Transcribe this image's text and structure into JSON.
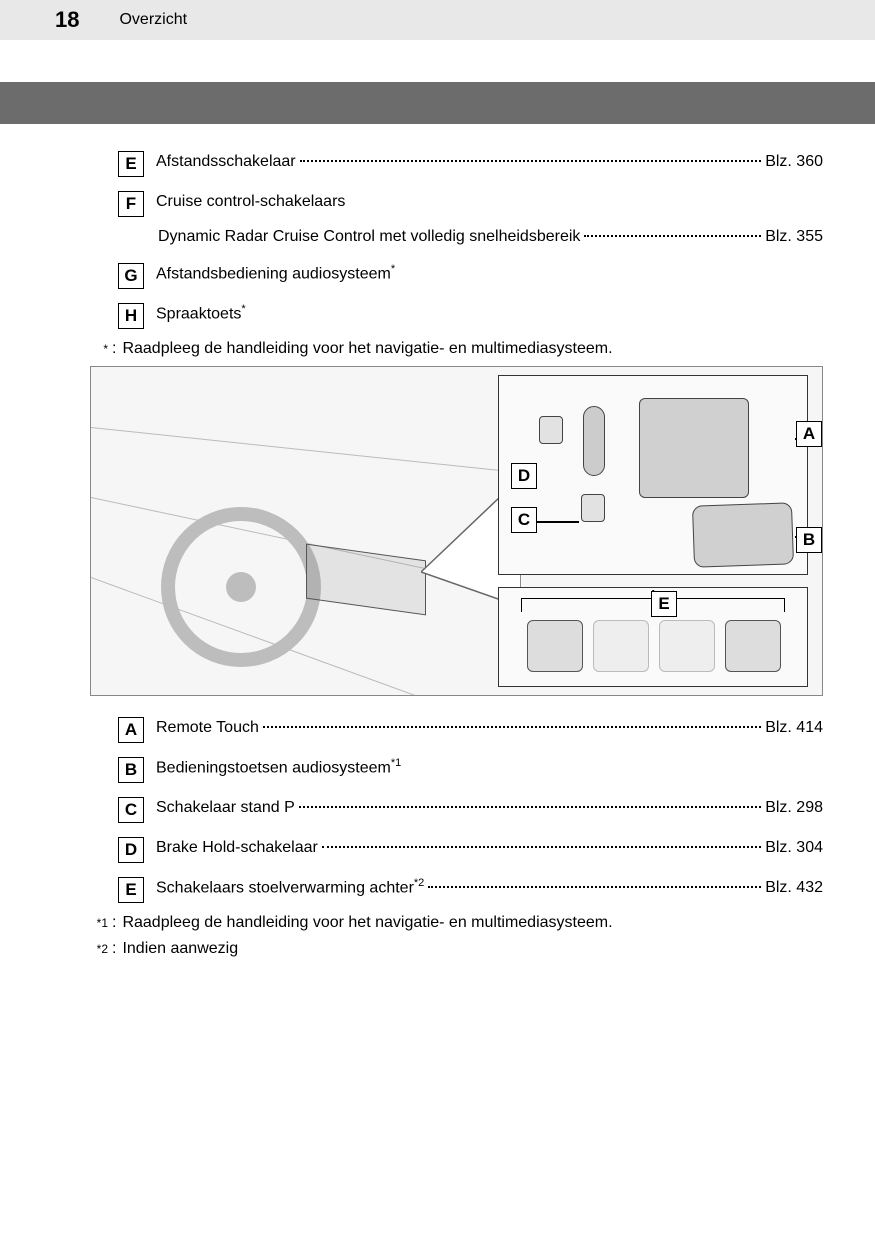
{
  "header": {
    "page_number": "18",
    "section_title": "Overzicht"
  },
  "upper_items": [
    {
      "letter": "E",
      "label": "Afstandsschakelaar",
      "page_ref": "Blz. 360",
      "has_dots": true
    },
    {
      "letter": "F",
      "label": "Cruise control-schakelaars",
      "page_ref": "",
      "has_dots": false,
      "sub": {
        "label": "Dynamic Radar Cruise Control met volledig snelheidsbereik",
        "page_ref": "Blz. 355"
      }
    },
    {
      "letter": "G",
      "label": "Afstandsbediening audiosysteem",
      "sup": "*",
      "page_ref": "",
      "has_dots": false
    },
    {
      "letter": "H",
      "label": "Spraaktoets",
      "sup": "*",
      "page_ref": "",
      "has_dots": false
    }
  ],
  "upper_footnotes": [
    {
      "mark": "*",
      "text": "Raadpleeg de handleiding voor het navigatie- en multimediasysteem."
    }
  ],
  "diagram": {
    "callouts": [
      "A",
      "B",
      "C",
      "D",
      "E"
    ]
  },
  "lower_items": [
    {
      "letter": "A",
      "label": "Remote Touch",
      "page_ref": "Blz. 414",
      "has_dots": true
    },
    {
      "letter": "B",
      "label": "Bedieningstoetsen audiosysteem",
      "sup": "*1",
      "page_ref": "",
      "has_dots": false
    },
    {
      "letter": "C",
      "label": "Schakelaar stand P",
      "page_ref": "Blz. 298",
      "has_dots": true
    },
    {
      "letter": "D",
      "label": "Brake Hold-schakelaar",
      "page_ref": "Blz. 304",
      "has_dots": true
    },
    {
      "letter": "E",
      "label": "Schakelaars stoelverwarming achter",
      "sup": "*2",
      "page_ref": "Blz. 432",
      "has_dots": true
    }
  ],
  "lower_footnotes": [
    {
      "mark": "*1",
      "text": "Raadpleeg de handleiding voor het navigatie- en multimediasysteem."
    },
    {
      "mark": "*2",
      "text": "Indien aanwezig"
    }
  ],
  "colors": {
    "header_bg": "#e8e8e8",
    "dark_bar": "#6c6c6c",
    "text": "#000000"
  }
}
